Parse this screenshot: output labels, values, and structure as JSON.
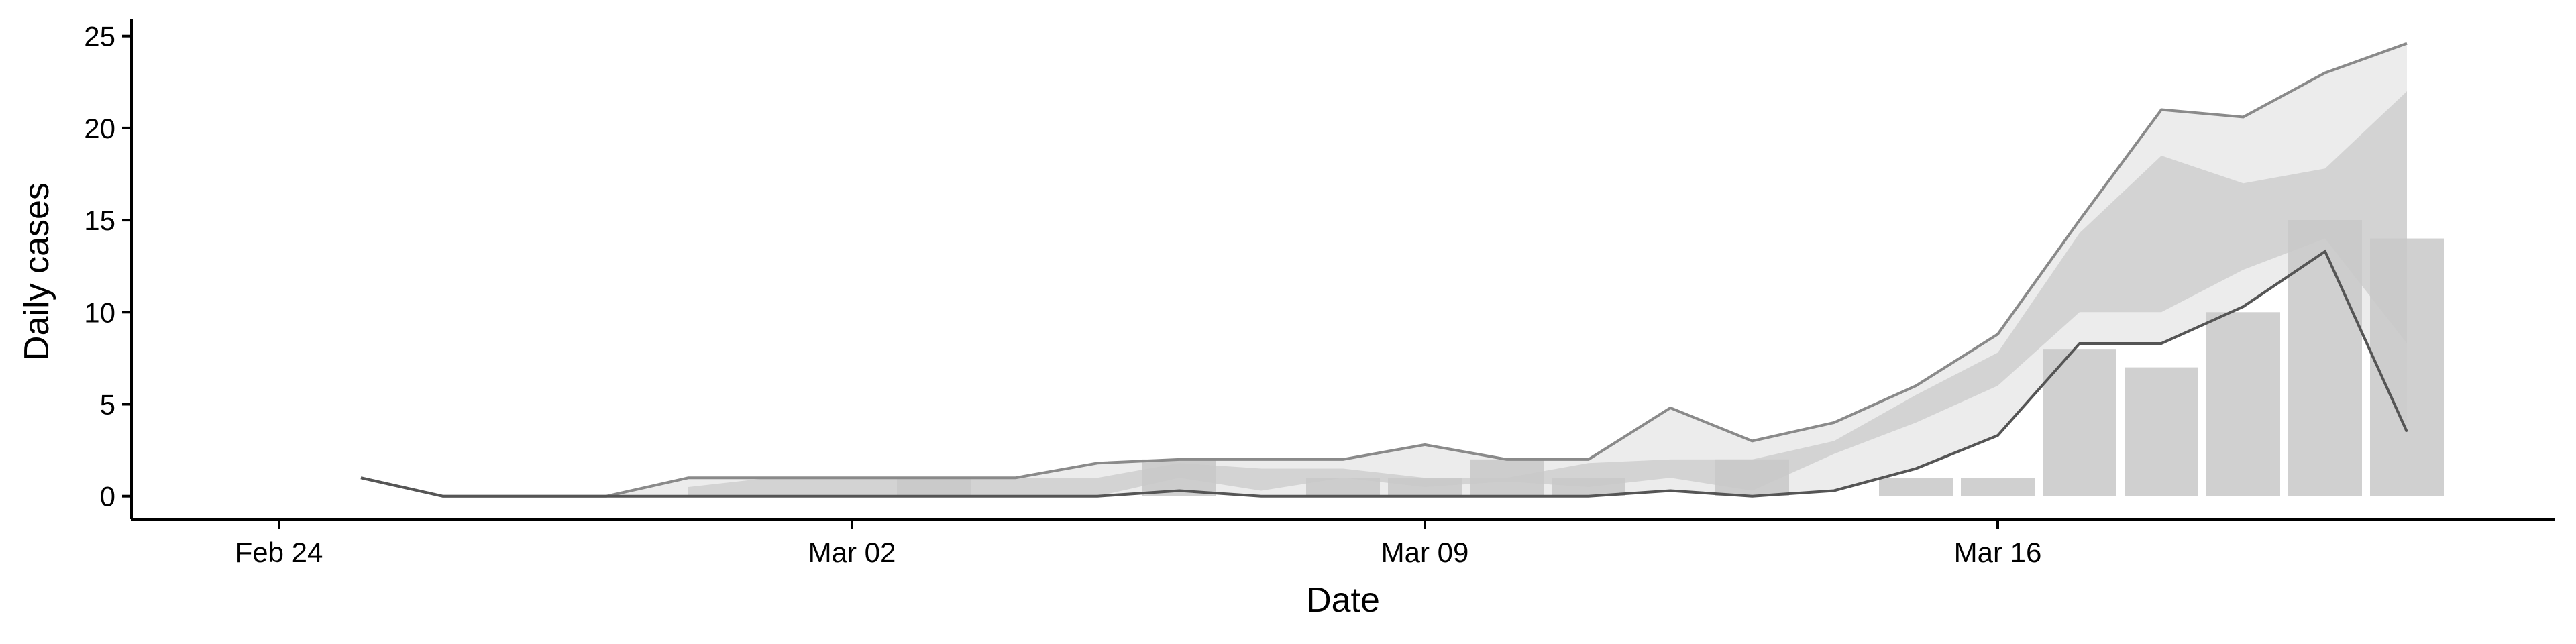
{
  "chart_data": {
    "type": "bar-ribbon",
    "x_label": "Date",
    "y_label": "Daily cases",
    "categories": [
      "Feb 24",
      null,
      null,
      null,
      null,
      null,
      null,
      "Mar 02",
      null,
      null,
      null,
      null,
      null,
      null,
      "Mar 09",
      null,
      null,
      null,
      null,
      null,
      null,
      "Mar 16",
      null,
      null,
      null,
      null,
      null
    ],
    "values": [
      0,
      0,
      0,
      0,
      0,
      0,
      0,
      0,
      1,
      0,
      0,
      2,
      0,
      1,
      1,
      2,
      1,
      0,
      2,
      0,
      1,
      1,
      8,
      7,
      10,
      15,
      14
    ],
    "color": "#c8c8c8",
    "lines": [
      {
        "color": "#8a8a8a",
        "values": [
          null,
          1,
          0,
          0,
          0,
          1,
          1,
          1,
          1,
          1,
          1.8,
          2,
          2,
          2,
          2.8,
          2,
          2,
          4.8,
          3,
          4,
          6,
          8.8,
          15,
          21,
          20.6,
          23,
          24.6
        ]
      },
      {
        "color": "#555555",
        "values": [
          null,
          1,
          0,
          0,
          0,
          0,
          0,
          0,
          0,
          0,
          0,
          0.3,
          0,
          0,
          0,
          0,
          0,
          0.3,
          0,
          0.3,
          1.5,
          3.3,
          8.3,
          8.3,
          10.3,
          13.3,
          3.5
        ]
      }
    ],
    "outer_ribbon_color": "#ececec",
    "inner_ribbon": {
      "color": "#cfcfcf",
      "upper": [
        null,
        null,
        null,
        null,
        null,
        0.5,
        1,
        1,
        1,
        1,
        1,
        1.8,
        1.5,
        1.5,
        1,
        1,
        1.8,
        2,
        2,
        3,
        5.5,
        7.8,
        14.3,
        18.5,
        17,
        17.8,
        22
      ],
      "lower": [
        null,
        null,
        null,
        null,
        null,
        0,
        0,
        0,
        0,
        0,
        0,
        1,
        0.3,
        1,
        0.5,
        0.8,
        0.5,
        1,
        0.3,
        2.3,
        4,
        6,
        10,
        10,
        12.3,
        14,
        8.3
      ]
    },
    "ylim": [
      -1.25,
      25.9
    ],
    "yticks": [
      0,
      5,
      10,
      15,
      20,
      25
    ]
  }
}
